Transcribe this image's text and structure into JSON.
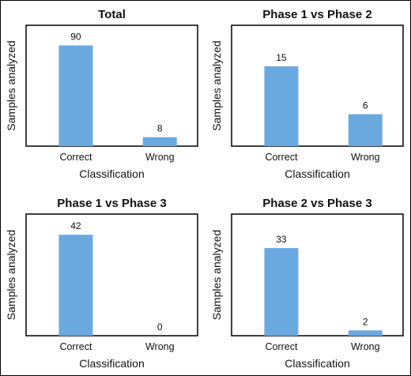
{
  "colors": {
    "bar": "#6aa9e0",
    "axis": "#000000"
  },
  "chart_data": [
    {
      "type": "bar",
      "title": "Total",
      "xlabel": "Classification",
      "ylabel": "Samples analyzed",
      "categories": [
        "Correct",
        "Wrong"
      ],
      "values": [
        90,
        8
      ],
      "value_labels": [
        "90",
        "8"
      ],
      "ylim": [
        0,
        108
      ],
      "grid": false
    },
    {
      "type": "bar",
      "title": "Phase 1 vs Phase 2",
      "xlabel": "Classification",
      "ylabel": "Samples analyzed",
      "categories": [
        "Correct",
        "Wrong"
      ],
      "values": [
        15,
        6
      ],
      "value_labels": [
        "15",
        "6"
      ],
      "ylim": [
        0,
        22.7
      ],
      "grid": false
    },
    {
      "type": "bar",
      "title": "Phase 1 vs Phase 3",
      "xlabel": "Classification",
      "ylabel": "Samples analyzed",
      "categories": [
        "Correct",
        "Wrong"
      ],
      "values": [
        42,
        0
      ],
      "value_labels": [
        "42",
        "0"
      ],
      "ylim": [
        0,
        50.6
      ],
      "grid": false
    },
    {
      "type": "bar",
      "title": "Phase 2 vs Phase 3",
      "xlabel": "Classification",
      "ylabel": "Samples analyzed",
      "categories": [
        "Correct",
        "Wrong"
      ],
      "values": [
        33,
        2
      ],
      "value_labels": [
        "33",
        "2"
      ],
      "ylim": [
        0,
        45.8
      ],
      "grid": false
    }
  ]
}
